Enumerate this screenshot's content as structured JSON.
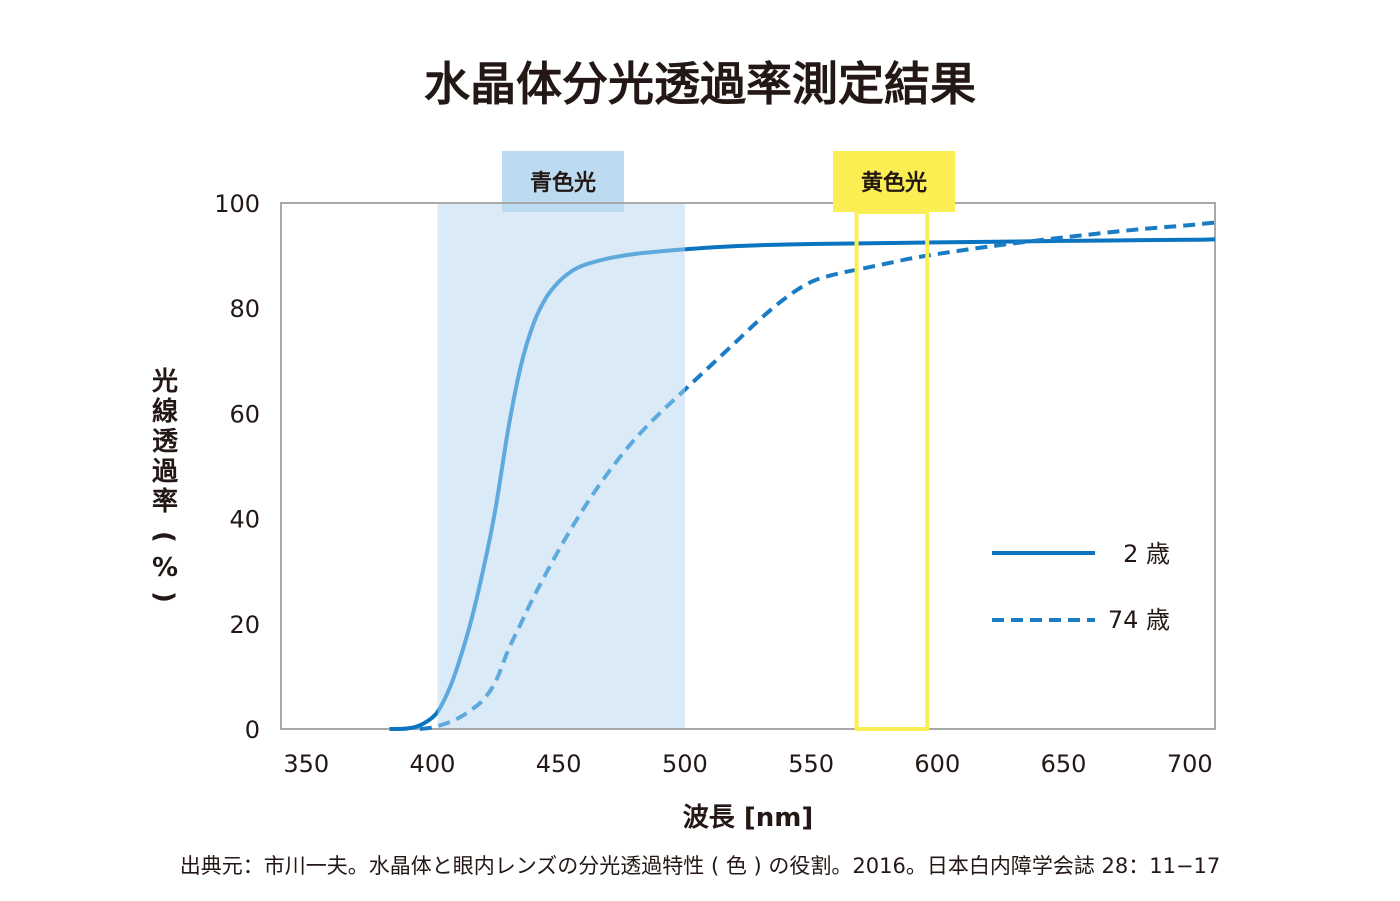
{
  "title": "水晶体分光透過率測定結果",
  "source": "出典元：市川一夫。水晶体と眼内レンズの分光透過特性 ( 色 ) の役割。2016。日本白内障学会誌 28：11−17",
  "colors": {
    "series_2": "#0a74c0",
    "series_2_in_band": "#5eaadd",
    "series_74": "#1a7cc4",
    "series_74_in_band": "#5eaadd",
    "blue_band_fill": "#dbeaf7",
    "blue_label_fill": "#bcdaf0",
    "yellow": "#fbee52",
    "frame": "#a8a8a8",
    "text": "#231815"
  },
  "chart_data": {
    "type": "line",
    "title": "水晶体分光透過率測定結果",
    "xlabel": "波長 [nm]",
    "ylabel_chars": [
      "光",
      "線",
      "透",
      "過",
      "率",
      "(",
      "%",
      ")"
    ],
    "xlim": [
      340,
      710
    ],
    "ylim": [
      0,
      100
    ],
    "x_ticks": [
      "350",
      "400",
      "450",
      "500",
      "550",
      "600",
      "650",
      "700"
    ],
    "y_ticks": [
      "0",
      "20",
      "40",
      "60",
      "80",
      "100"
    ],
    "bands": [
      {
        "label": "青色光",
        "range": [
          402,
          500
        ],
        "style": "filled-blue"
      },
      {
        "label": "黄色光",
        "range": [
          568,
          596
        ],
        "style": "outlined-yellow"
      }
    ],
    "series": [
      {
        "name": "2 歳",
        "style": "solid",
        "points": [
          [
            383,
            0
          ],
          [
            390,
            0.1
          ],
          [
            395,
            0.7
          ],
          [
            400,
            2.2
          ],
          [
            403,
            4
          ],
          [
            407,
            8
          ],
          [
            410,
            12
          ],
          [
            415,
            20
          ],
          [
            420,
            30
          ],
          [
            425,
            42
          ],
          [
            430,
            57
          ],
          [
            435,
            69
          ],
          [
            440,
            77
          ],
          [
            445,
            82
          ],
          [
            450,
            85
          ],
          [
            455,
            87
          ],
          [
            460,
            88.2
          ],
          [
            470,
            89.5
          ],
          [
            480,
            90.3
          ],
          [
            490,
            90.8
          ],
          [
            500,
            91.2
          ],
          [
            520,
            91.8
          ],
          [
            550,
            92.2
          ],
          [
            600,
            92.5
          ],
          [
            650,
            92.8
          ],
          [
            700,
            93
          ],
          [
            710,
            93.1
          ]
        ]
      },
      {
        "name": "74 歳",
        "style": "dashed",
        "points": [
          [
            395,
            0
          ],
          [
            400,
            0.3
          ],
          [
            405,
            1
          ],
          [
            410,
            2
          ],
          [
            415,
            3.5
          ],
          [
            420,
            5.5
          ],
          [
            425,
            9
          ],
          [
            430,
            15
          ],
          [
            435,
            20
          ],
          [
            440,
            25
          ],
          [
            450,
            34
          ],
          [
            460,
            42
          ],
          [
            470,
            49
          ],
          [
            480,
            55
          ],
          [
            490,
            60
          ],
          [
            500,
            64.5
          ],
          [
            510,
            69
          ],
          [
            520,
            73.5
          ],
          [
            530,
            78
          ],
          [
            540,
            82
          ],
          [
            550,
            85
          ],
          [
            560,
            86.5
          ],
          [
            570,
            87.5
          ],
          [
            580,
            88.5
          ],
          [
            590,
            89.5
          ],
          [
            600,
            90.3
          ],
          [
            620,
            91.7
          ],
          [
            640,
            92.9
          ],
          [
            660,
            94
          ],
          [
            680,
            95
          ],
          [
            700,
            95.8
          ],
          [
            710,
            96.3
          ]
        ]
      }
    ],
    "legend": {
      "position": "right-middle"
    }
  }
}
